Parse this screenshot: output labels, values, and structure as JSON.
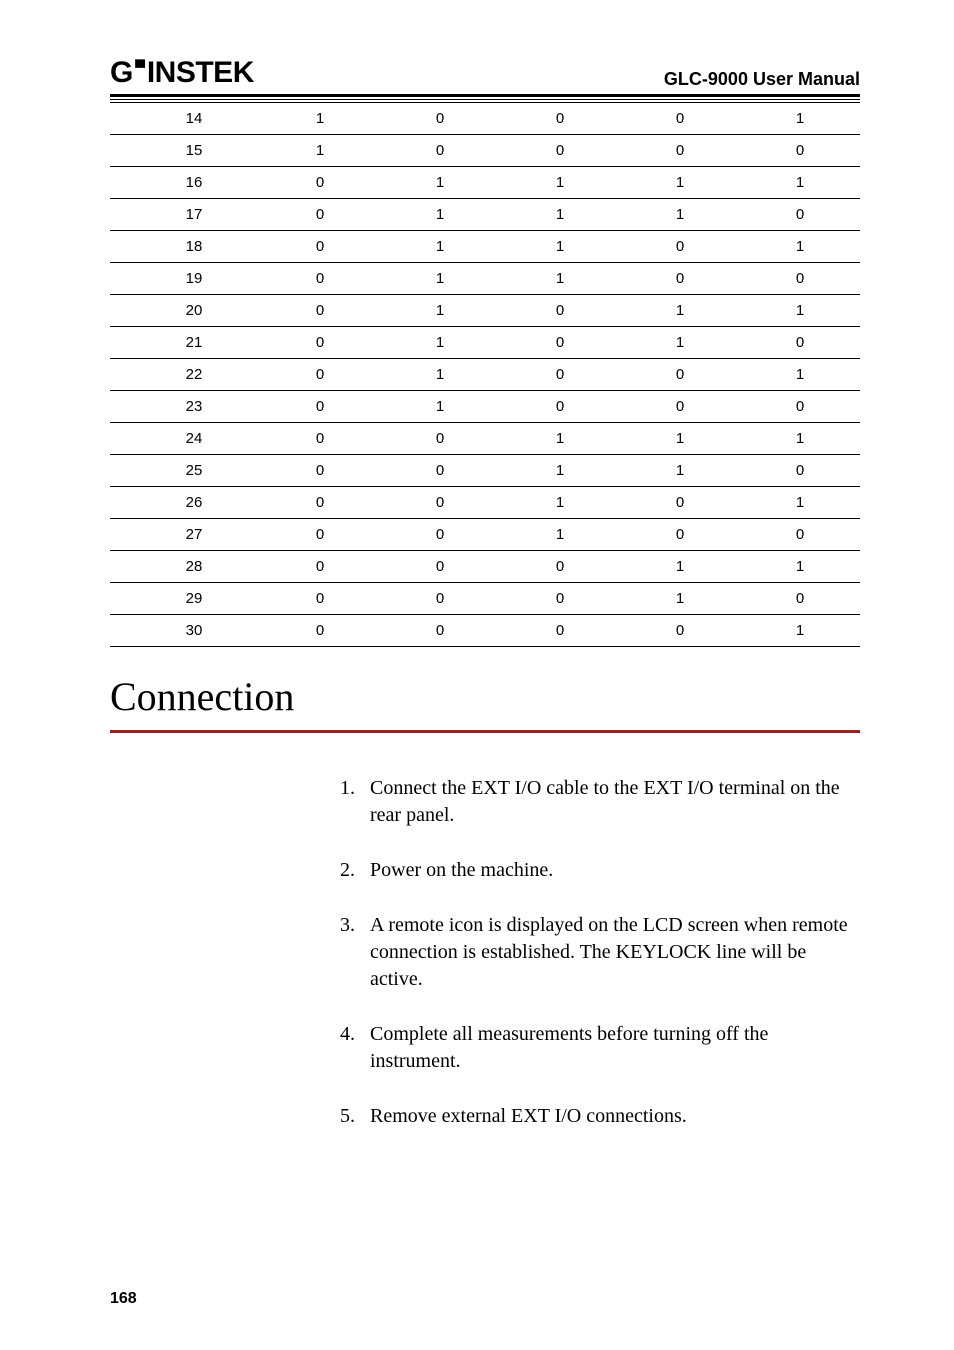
{
  "header": {
    "logo_left": "G",
    "logo_sup": "▔",
    "logo_right": "INSTEK",
    "manual_title": "GLC-9000 User Manual"
  },
  "table": {
    "rows": [
      [
        "14",
        "1",
        "0",
        "0",
        "0",
        "1"
      ],
      [
        "15",
        "1",
        "0",
        "0",
        "0",
        "0"
      ],
      [
        "16",
        "0",
        "1",
        "1",
        "1",
        "1"
      ],
      [
        "17",
        "0",
        "1",
        "1",
        "1",
        "0"
      ],
      [
        "18",
        "0",
        "1",
        "1",
        "0",
        "1"
      ],
      [
        "19",
        "0",
        "1",
        "1",
        "0",
        "0"
      ],
      [
        "20",
        "0",
        "1",
        "0",
        "1",
        "1"
      ],
      [
        "21",
        "0",
        "1",
        "0",
        "1",
        "0"
      ],
      [
        "22",
        "0",
        "1",
        "0",
        "0",
        "1"
      ],
      [
        "23",
        "0",
        "1",
        "0",
        "0",
        "0"
      ],
      [
        "24",
        "0",
        "0",
        "1",
        "1",
        "1"
      ],
      [
        "25",
        "0",
        "0",
        "1",
        "1",
        "0"
      ],
      [
        "26",
        "0",
        "0",
        "1",
        "0",
        "1"
      ],
      [
        "27",
        "0",
        "0",
        "1",
        "0",
        "0"
      ],
      [
        "28",
        "0",
        "0",
        "0",
        "1",
        "1"
      ],
      [
        "29",
        "0",
        "0",
        "0",
        "1",
        "0"
      ],
      [
        "30",
        "0",
        "0",
        "0",
        "0",
        "1"
      ]
    ]
  },
  "section": {
    "title": "Connection"
  },
  "steps": [
    "Connect the EXT I/O cable to the EXT I/O terminal on the rear panel.",
    "Power on the machine.",
    "A remote icon is displayed on the LCD screen when remote connection is established. The KEYLOCK line will be active.",
    "Complete all measurements before turning off the instrument.",
    "Remove external EXT I/O connections."
  ],
  "page_number": "168",
  "style": {
    "red_rule_color": "#a02020",
    "body_bg": "#ffffff",
    "text_color": "#000000"
  }
}
